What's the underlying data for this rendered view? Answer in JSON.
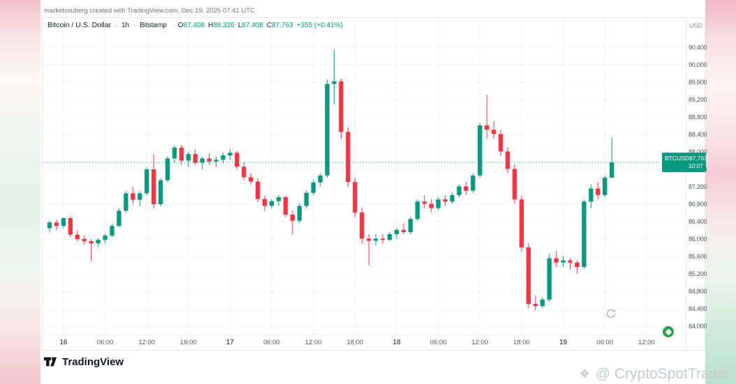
{
  "attribution": "marketssuberg created with TradingView.com, Dec 19, 2025 07:41 UTC",
  "header": {
    "symbol": "Bitcoin / U.S. Dollar",
    "sep": "·",
    "interval": "1h",
    "exchange": "Bitstamp",
    "ohlc": {
      "o_label": "O",
      "o": "87,408",
      "h_label": "H",
      "h": "88,326",
      "l_label": "L",
      "l": "87,408",
      "c_label": "C",
      "c": "87,763",
      "change": "+355 (+0.41%)"
    }
  },
  "price_axis": {
    "currency": "USD",
    "ticks": [
      90400,
      90000,
      89600,
      89200,
      88800,
      88400,
      88000,
      87600,
      87200,
      86800,
      86400,
      86000,
      85600,
      85200,
      84800,
      84400,
      84000
    ],
    "badge": {
      "symbol": "BTCUSD",
      "price": "87,763",
      "countdown": "10:07"
    }
  },
  "time_axis": {
    "ticks": [
      {
        "idx": 2,
        "label": "16",
        "major": true
      },
      {
        "idx": 8,
        "label": "06:00",
        "major": false
      },
      {
        "idx": 14,
        "label": "12:00",
        "major": false
      },
      {
        "idx": 20,
        "label": "18:00",
        "major": false
      },
      {
        "idx": 26,
        "label": "17",
        "major": true
      },
      {
        "idx": 32,
        "label": "06:00",
        "major": false
      },
      {
        "idx": 38,
        "label": "12:00",
        "major": false
      },
      {
        "idx": 44,
        "label": "18:00",
        "major": false
      },
      {
        "idx": 50,
        "label": "18",
        "major": true
      },
      {
        "idx": 56,
        "label": "06:00",
        "major": false
      },
      {
        "idx": 62,
        "label": "12:00",
        "major": false
      },
      {
        "idx": 68,
        "label": "18:00",
        "major": false
      },
      {
        "idx": 74,
        "label": "19",
        "major": true
      },
      {
        "idx": 80,
        "label": "06:00",
        "major": false
      },
      {
        "idx": 86,
        "label": "12:00",
        "major": false
      }
    ]
  },
  "footer": {
    "logo_text": "TradingView"
  },
  "watermark": {
    "icon": "❖",
    "text": "@ CryptoSpotTrader"
  },
  "colors": {
    "up": "#089981",
    "down": "#F23645",
    "grid": "#F0F3FA",
    "frame": "#E6E8EC",
    "axis_text": "#51545B",
    "major_text": "#131722",
    "badge_bg": "#089981"
  },
  "chart_data": {
    "type": "candlestick",
    "title": "Bitcoin / U.S. Dollar",
    "symbol": "BTCUSD",
    "exchange": "Bitstamp",
    "interval": "1h",
    "x_start": "2025-12-15 22:00 UTC",
    "x_step_hours": 1,
    "ylim": [
      84000,
      90400
    ],
    "ytick_step": 400,
    "grid": true,
    "last_price": 87763,
    "candles": [
      [
        86250,
        86420,
        86150,
        86380
      ],
      [
        86380,
        86450,
        86200,
        86300
      ],
      [
        86300,
        86500,
        86250,
        86480
      ],
      [
        86480,
        86520,
        86050,
        86100
      ],
      [
        86100,
        86200,
        85950,
        86000
      ],
      [
        86000,
        86080,
        85880,
        85950
      ],
      [
        85950,
        86000,
        85500,
        85900
      ],
      [
        85900,
        86020,
        85820,
        85980
      ],
      [
        85980,
        86120,
        85900,
        86080
      ],
      [
        86080,
        86350,
        86040,
        86300
      ],
      [
        86300,
        86700,
        86280,
        86650
      ],
      [
        86650,
        87100,
        86600,
        87050
      ],
      [
        87050,
        87200,
        86800,
        86900
      ],
      [
        86900,
        87100,
        86750,
        87050
      ],
      [
        87050,
        87650,
        87000,
        87600
      ],
      [
        87600,
        87950,
        86700,
        86800
      ],
      [
        86800,
        87400,
        86750,
        87350
      ],
      [
        87350,
        87900,
        87300,
        87850
      ],
      [
        87850,
        88150,
        87750,
        88100
      ],
      [
        88100,
        88160,
        87700,
        87800
      ],
      [
        87800,
        88000,
        87650,
        87950
      ],
      [
        87950,
        88060,
        87700,
        87750
      ],
      [
        87750,
        87900,
        87600,
        87850
      ],
      [
        87850,
        87960,
        87700,
        87780
      ],
      [
        87780,
        87900,
        87650,
        87820
      ],
      [
        87820,
        87980,
        87750,
        87920
      ],
      [
        87920,
        88060,
        87820,
        87980
      ],
      [
        87980,
        88020,
        87600,
        87660
      ],
      [
        87660,
        87760,
        87350,
        87420
      ],
      [
        87420,
        87520,
        87250,
        87320
      ],
      [
        87320,
        87400,
        86850,
        86920
      ],
      [
        86920,
        87000,
        86650,
        86760
      ],
      [
        86760,
        86920,
        86700,
        86870
      ],
      [
        86870,
        87010,
        86760,
        86960
      ],
      [
        86960,
        87000,
        86500,
        86560
      ],
      [
        86560,
        86660,
        86100,
        86420
      ],
      [
        86420,
        86820,
        86360,
        86760
      ],
      [
        86760,
        87120,
        86700,
        87060
      ],
      [
        87060,
        87360,
        87010,
        87300
      ],
      [
        87300,
        87510,
        87210,
        87460
      ],
      [
        87460,
        89660,
        87410,
        89560
      ],
      [
        89560,
        90350,
        89100,
        89620
      ],
      [
        89620,
        89680,
        88300,
        88460
      ],
      [
        88460,
        88560,
        87200,
        87310
      ],
      [
        87310,
        87410,
        86500,
        86610
      ],
      [
        86610,
        86710,
        85900,
        86010
      ],
      [
        86010,
        86110,
        85400,
        85960
      ],
      [
        85960,
        86110,
        85850,
        86010
      ],
      [
        86010,
        86110,
        85900,
        85980
      ],
      [
        85980,
        86160,
        85950,
        86110
      ],
      [
        86110,
        86260,
        86010,
        86210
      ],
      [
        86210,
        86360,
        86110,
        86160
      ],
      [
        86160,
        86510,
        86110,
        86460
      ],
      [
        86460,
        86910,
        86410,
        86860
      ],
      [
        86860,
        87010,
        86710,
        86810
      ],
      [
        86810,
        86910,
        86610,
        86710
      ],
      [
        86710,
        86960,
        86660,
        86910
      ],
      [
        86910,
        87010,
        86760,
        86860
      ],
      [
        86860,
        87060,
        86810,
        87010
      ],
      [
        87010,
        87260,
        86960,
        87210
      ],
      [
        87210,
        87310,
        87010,
        87110
      ],
      [
        87110,
        87510,
        87060,
        87460
      ],
      [
        87460,
        88660,
        87410,
        88610
      ],
      [
        88610,
        89310,
        88310,
        88510
      ],
      [
        88510,
        88710,
        88310,
        88410
      ],
      [
        88410,
        88510,
        87910,
        88010
      ],
      [
        88010,
        88110,
        87510,
        87610
      ],
      [
        87610,
        87710,
        86810,
        86910
      ],
      [
        86910,
        87010,
        85710,
        85810
      ],
      [
        85810,
        85910,
        84410,
        84510
      ],
      [
        84510,
        84710,
        84360,
        84460
      ],
      [
        84460,
        84660,
        84410,
        84610
      ],
      [
        84610,
        85660,
        84560,
        85560
      ],
      [
        85560,
        85710,
        85360,
        85460
      ],
      [
        85460,
        85610,
        85360,
        85510
      ],
      [
        85510,
        85560,
        85310,
        85460
      ],
      [
        85460,
        85510,
        85210,
        85360
      ],
      [
        85360,
        86910,
        85310,
        86860
      ],
      [
        86860,
        87260,
        86710,
        87160
      ],
      [
        87160,
        87310,
        86910,
        87010
      ],
      [
        87010,
        87460,
        86960,
        87408
      ],
      [
        87408,
        88326,
        87408,
        87763
      ]
    ]
  }
}
